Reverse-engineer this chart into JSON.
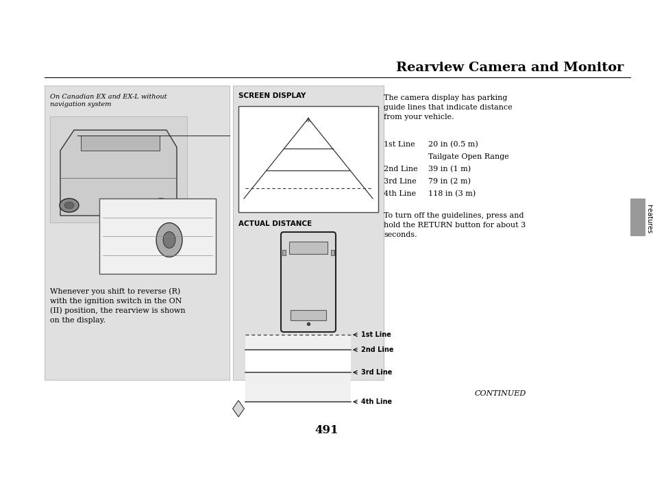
{
  "page_bg": "#ffffff",
  "title": "Rearview Camera and Monitor",
  "title_fontsize": 14,
  "title_color": "#000000",
  "page_number": "491",
  "left_panel_bg": "#e0e0e0",
  "middle_panel_bg": "#e0e0e0",
  "left_italic_label": "On Canadian EX and EX-L without\nnavigation system",
  "left_body_text": "Whenever you shift to reverse (R)\nwith the ignition switch in the ON\n(II) position, the rearview is shown\non the display.",
  "screen_display_label": "SCREEN DISPLAY",
  "actual_distance_label": "ACTUAL DISTANCE",
  "line_labels": [
    "1st Line",
    "2nd Line",
    "3rd Line",
    "4th Line"
  ],
  "right_text_para1": "The camera display has parking\nguide lines that indicate distance\nfrom your vehicle.",
  "right_text_table": [
    [
      "1st Line",
      "20 in (0.5 m)",
      false
    ],
    [
      "",
      "Tailgate Open Range",
      false
    ],
    [
      "2nd Line",
      "39 in (1 m)",
      false
    ],
    [
      "3rd Line",
      "79 in (2 m)",
      false
    ],
    [
      "4th Line",
      "118 in (3 m)",
      false
    ]
  ],
  "right_text_para2": "To turn off the guidelines, press and\nhold the RETURN button for about 3\nseconds.",
  "continued_text": "CONTINUED",
  "features_sidebar_color": "#999999",
  "features_text": "Features"
}
